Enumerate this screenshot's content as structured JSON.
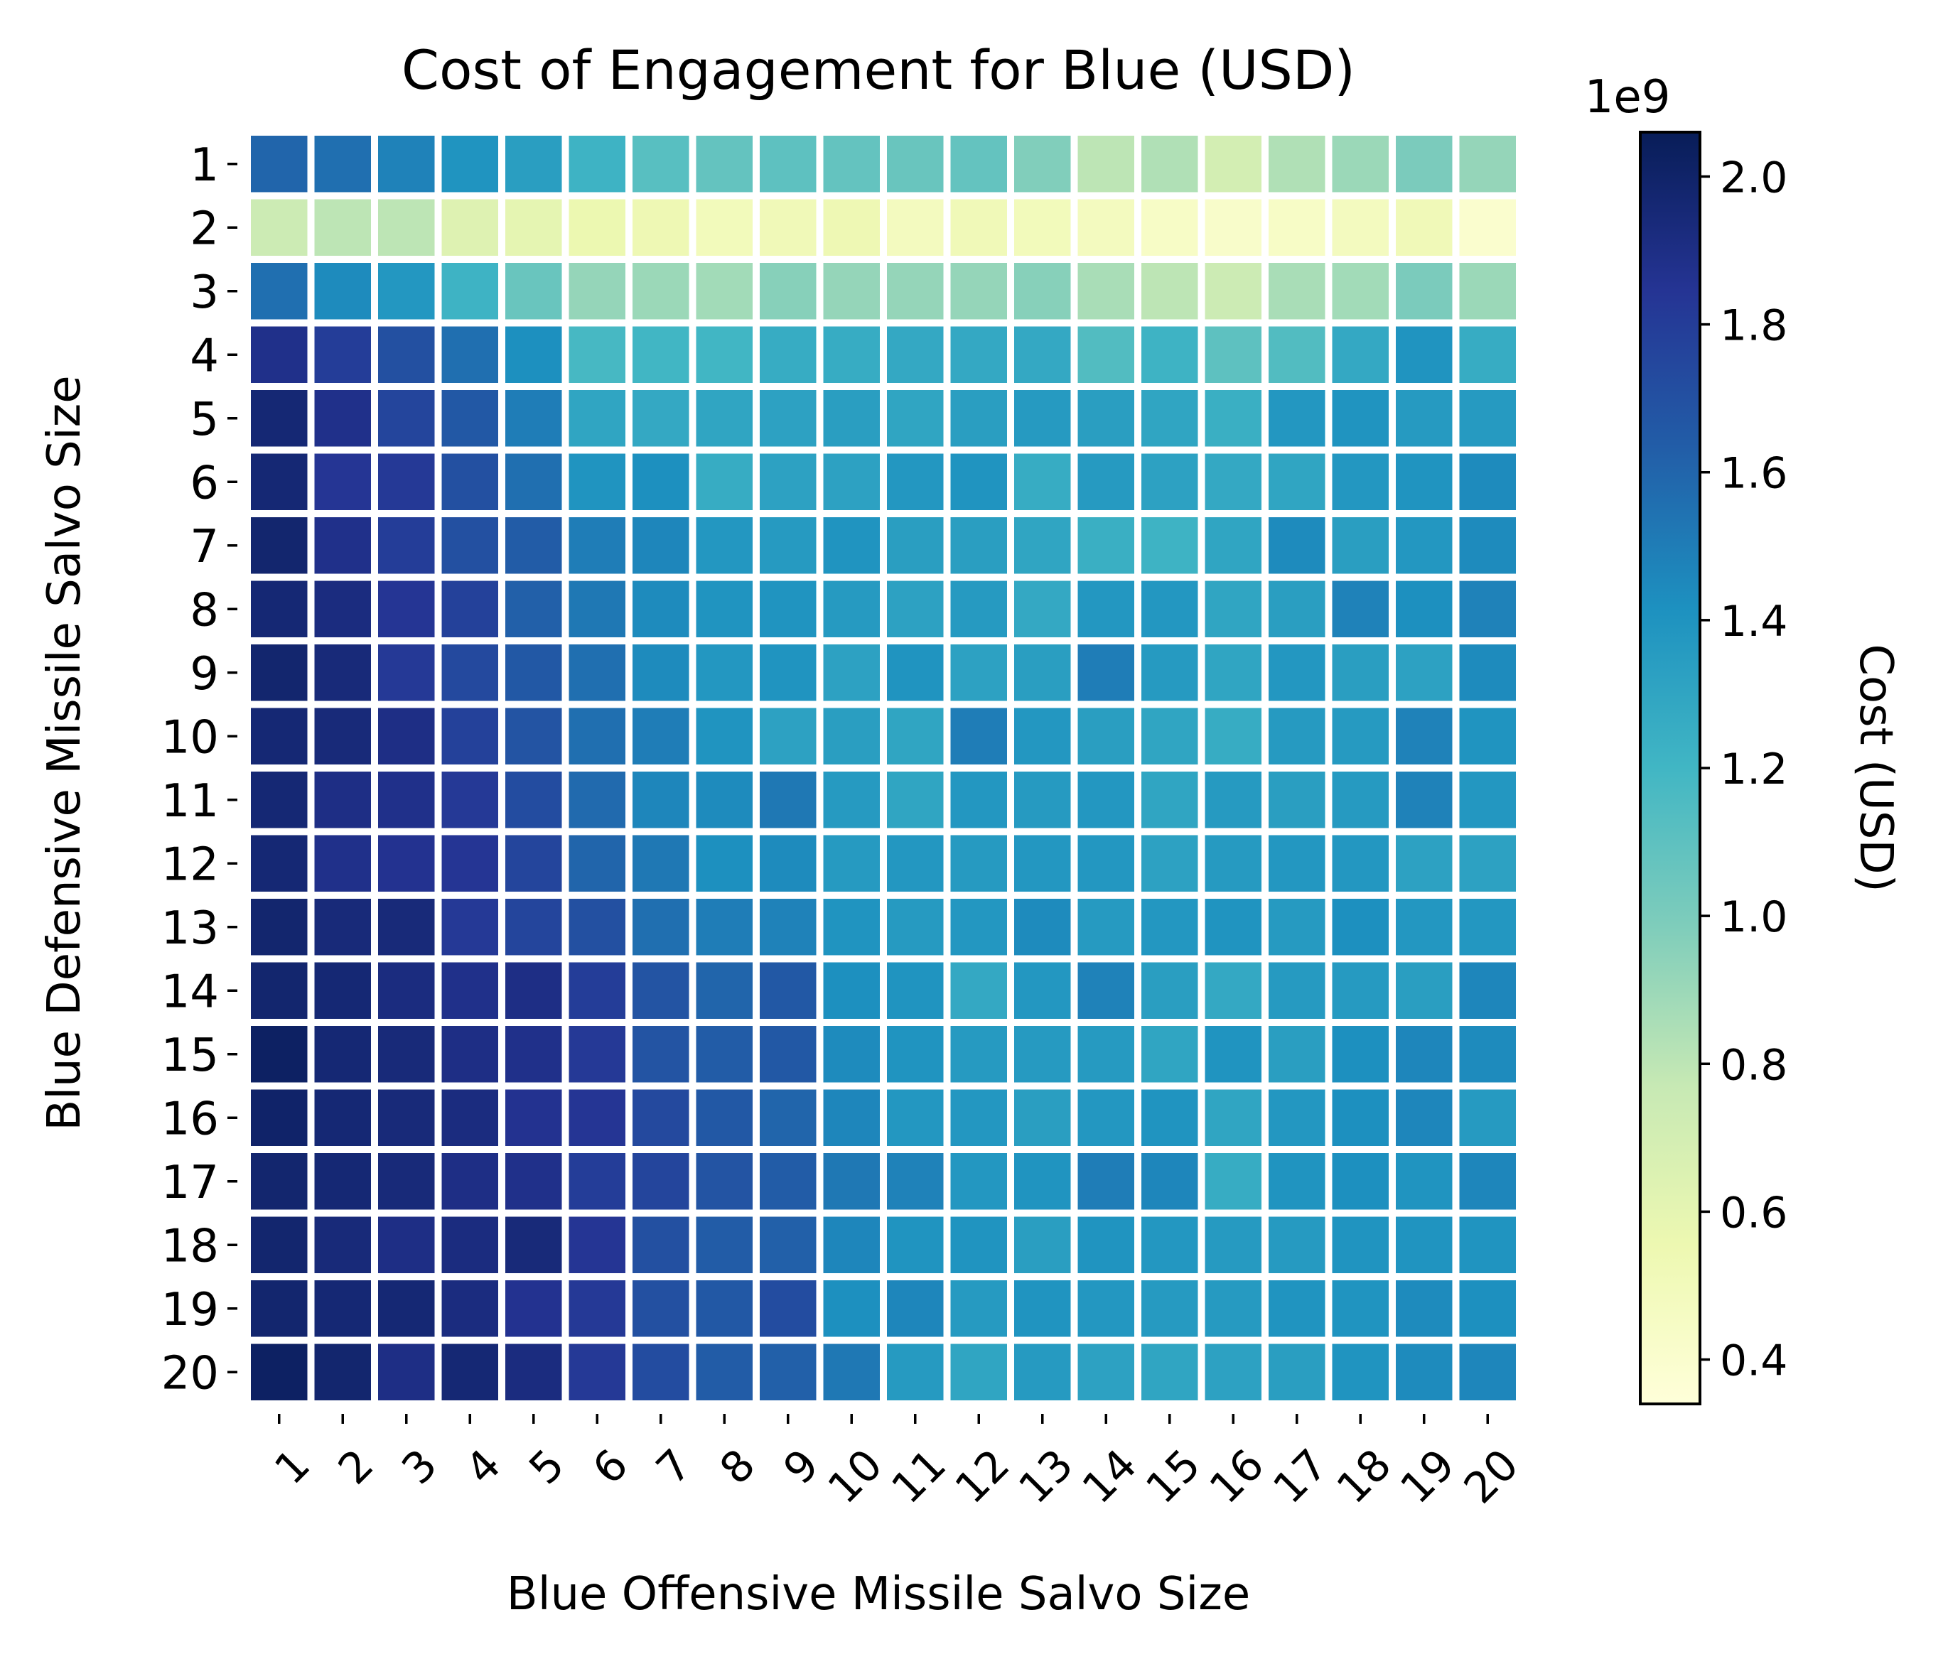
{
  "chart_data": {
    "type": "heatmap",
    "title": "Cost of Engagement for Blue (USD)",
    "xlabel": "Blue Offensive Missile Salvo Size",
    "ylabel": "Blue Defensive Missile Salvo Size",
    "x_categories": [
      "1",
      "2",
      "3",
      "4",
      "5",
      "6",
      "7",
      "8",
      "9",
      "10",
      "11",
      "12",
      "13",
      "14",
      "15",
      "16",
      "17",
      "18",
      "19",
      "20"
    ],
    "y_categories": [
      "1",
      "2",
      "3",
      "4",
      "5",
      "6",
      "7",
      "8",
      "9",
      "10",
      "11",
      "12",
      "13",
      "14",
      "15",
      "16",
      "17",
      "18",
      "19",
      "20"
    ],
    "colorbar": {
      "label": "Cost (USD)",
      "offset_text": "1e9",
      "range": [
        0.34,
        2.06
      ],
      "ticks": [
        0.4,
        0.6,
        0.8,
        1.0,
        1.2,
        1.4,
        1.6,
        1.8,
        2.0
      ],
      "tick_labels": [
        "0.4",
        "0.6",
        "0.8",
        "1.0",
        "1.2",
        "1.4",
        "1.6",
        "1.8",
        "2.0"
      ],
      "colormap": "YlGnBu",
      "unit_multiplier": 1000000000
    },
    "values_unit": "1e9 USD",
    "values": [
      [
        1.6,
        1.56,
        1.48,
        1.4,
        1.34,
        1.22,
        1.12,
        1.08,
        1.1,
        1.08,
        1.06,
        1.08,
        0.98,
        0.8,
        0.84,
        0.7,
        0.84,
        0.9,
        1.0,
        0.92
      ],
      [
        0.74,
        0.8,
        0.8,
        0.64,
        0.6,
        0.56,
        0.54,
        0.5,
        0.52,
        0.54,
        0.48,
        0.52,
        0.5,
        0.48,
        0.44,
        0.42,
        0.44,
        0.48,
        0.52,
        0.4
      ],
      [
        1.56,
        1.44,
        1.38,
        1.22,
        1.06,
        0.92,
        0.9,
        0.88,
        0.96,
        0.92,
        0.92,
        0.92,
        0.96,
        0.86,
        0.8,
        0.74,
        0.86,
        0.88,
        1.0,
        0.9
      ],
      [
        1.88,
        1.8,
        1.7,
        1.56,
        1.42,
        1.18,
        1.2,
        1.2,
        1.26,
        1.26,
        1.28,
        1.28,
        1.28,
        1.14,
        1.22,
        1.1,
        1.14,
        1.28,
        1.4,
        1.26
      ],
      [
        1.96,
        1.88,
        1.76,
        1.66,
        1.5,
        1.3,
        1.28,
        1.3,
        1.32,
        1.34,
        1.3,
        1.34,
        1.36,
        1.34,
        1.3,
        1.24,
        1.38,
        1.4,
        1.36,
        1.36
      ],
      [
        1.96,
        1.84,
        1.82,
        1.7,
        1.56,
        1.4,
        1.42,
        1.26,
        1.32,
        1.32,
        1.38,
        1.4,
        1.26,
        1.36,
        1.32,
        1.28,
        1.3,
        1.38,
        1.4,
        1.44
      ],
      [
        1.98,
        1.88,
        1.8,
        1.7,
        1.64,
        1.5,
        1.46,
        1.38,
        1.36,
        1.4,
        1.34,
        1.34,
        1.3,
        1.24,
        1.22,
        1.3,
        1.44,
        1.34,
        1.38,
        1.44
      ],
      [
        1.96,
        1.92,
        1.84,
        1.78,
        1.62,
        1.52,
        1.44,
        1.4,
        1.4,
        1.36,
        1.32,
        1.36,
        1.28,
        1.38,
        1.38,
        1.3,
        1.34,
        1.48,
        1.42,
        1.48
      ],
      [
        1.98,
        1.94,
        1.82,
        1.74,
        1.66,
        1.56,
        1.44,
        1.38,
        1.4,
        1.32,
        1.4,
        1.32,
        1.34,
        1.5,
        1.36,
        1.3,
        1.38,
        1.34,
        1.32,
        1.44
      ],
      [
        1.96,
        1.94,
        1.9,
        1.78,
        1.68,
        1.56,
        1.5,
        1.4,
        1.32,
        1.34,
        1.3,
        1.5,
        1.38,
        1.34,
        1.3,
        1.26,
        1.36,
        1.36,
        1.48,
        1.4
      ],
      [
        1.96,
        1.9,
        1.88,
        1.82,
        1.72,
        1.58,
        1.46,
        1.44,
        1.52,
        1.36,
        1.3,
        1.38,
        1.36,
        1.38,
        1.3,
        1.36,
        1.34,
        1.36,
        1.48,
        1.38
      ],
      [
        1.96,
        1.88,
        1.86,
        1.84,
        1.76,
        1.6,
        1.52,
        1.42,
        1.44,
        1.36,
        1.38,
        1.36,
        1.38,
        1.38,
        1.32,
        1.36,
        1.38,
        1.38,
        1.32,
        1.32
      ],
      [
        1.98,
        1.94,
        1.94,
        1.82,
        1.76,
        1.7,
        1.56,
        1.5,
        1.48,
        1.4,
        1.36,
        1.38,
        1.44,
        1.36,
        1.38,
        1.4,
        1.36,
        1.42,
        1.38,
        1.38
      ],
      [
        1.98,
        1.96,
        1.92,
        1.88,
        1.9,
        1.8,
        1.68,
        1.6,
        1.66,
        1.42,
        1.4,
        1.28,
        1.38,
        1.48,
        1.34,
        1.28,
        1.36,
        1.36,
        1.34,
        1.46
      ],
      [
        2.02,
        1.96,
        1.94,
        1.9,
        1.88,
        1.82,
        1.68,
        1.64,
        1.66,
        1.44,
        1.4,
        1.36,
        1.36,
        1.36,
        1.3,
        1.4,
        1.34,
        1.42,
        1.46,
        1.44
      ],
      [
        2.0,
        1.96,
        1.94,
        1.92,
        1.86,
        1.84,
        1.74,
        1.66,
        1.6,
        1.46,
        1.38,
        1.38,
        1.34,
        1.38,
        1.4,
        1.3,
        1.38,
        1.42,
        1.46,
        1.36
      ],
      [
        1.98,
        1.96,
        1.94,
        1.9,
        1.88,
        1.8,
        1.76,
        1.68,
        1.64,
        1.52,
        1.48,
        1.38,
        1.4,
        1.5,
        1.46,
        1.26,
        1.4,
        1.42,
        1.4,
        1.46
      ],
      [
        1.98,
        1.94,
        1.9,
        1.92,
        1.94,
        1.84,
        1.7,
        1.64,
        1.62,
        1.46,
        1.4,
        1.4,
        1.34,
        1.4,
        1.38,
        1.36,
        1.36,
        1.4,
        1.4,
        1.4
      ],
      [
        1.98,
        1.96,
        1.96,
        1.92,
        1.86,
        1.82,
        1.7,
        1.66,
        1.72,
        1.42,
        1.46,
        1.36,
        1.4,
        1.38,
        1.36,
        1.36,
        1.4,
        1.4,
        1.44,
        1.42
      ],
      [
        2.02,
        1.98,
        1.9,
        1.96,
        1.92,
        1.82,
        1.72,
        1.64,
        1.62,
        1.52,
        1.36,
        1.3,
        1.36,
        1.32,
        1.3,
        1.32,
        1.34,
        1.4,
        1.44,
        1.46
      ]
    ]
  }
}
